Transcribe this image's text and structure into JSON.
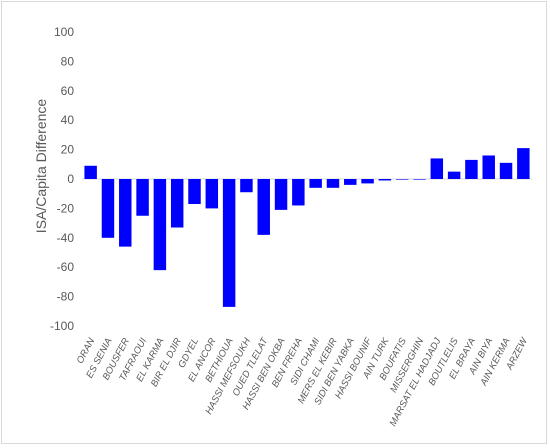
{
  "chart_data": {
    "type": "bar",
    "title": "",
    "xlabel": "",
    "ylabel": "ISA/Capita Difference",
    "ylim": [
      -100,
      100
    ],
    "yticks": [
      100,
      80,
      60,
      40,
      20,
      0,
      -20,
      -40,
      -60,
      -80,
      -100
    ],
    "grid": false,
    "legend": "none",
    "bar_color": "#0000ff",
    "categories": [
      "ORAN",
      "ES SENIA",
      "BOUSFER",
      "TAFRAOUI",
      "EL KARMA",
      "BIR EL DJIR",
      "GDYEL",
      "EL ANCOR",
      "BETHIOUA",
      "HASSI MEFSOUKH",
      "OUED TLELAT",
      "HASSI BEN OKBA",
      "BEN FREHA",
      "SIDI CHAMI",
      "MERS EL KEBIR",
      "SIDI BEN YABKA",
      "HASSI BOUNIF",
      "AIN TURK",
      "BOUFATIS",
      "MISSERGHIN",
      "MARSAT EL HADJADJ",
      "BOUTLELIS",
      "EL BRAYA",
      "AIN BIYA",
      "AIN KERMA",
      "ARZEW"
    ],
    "values": [
      9,
      -40,
      -46,
      -25,
      -62,
      -33,
      -17,
      -20,
      -87,
      -9,
      -38,
      -21,
      -18,
      -6,
      -6,
      -4,
      -3,
      -1,
      -0.3,
      -0.3,
      14,
      5,
      13,
      16,
      11,
      21
    ]
  }
}
